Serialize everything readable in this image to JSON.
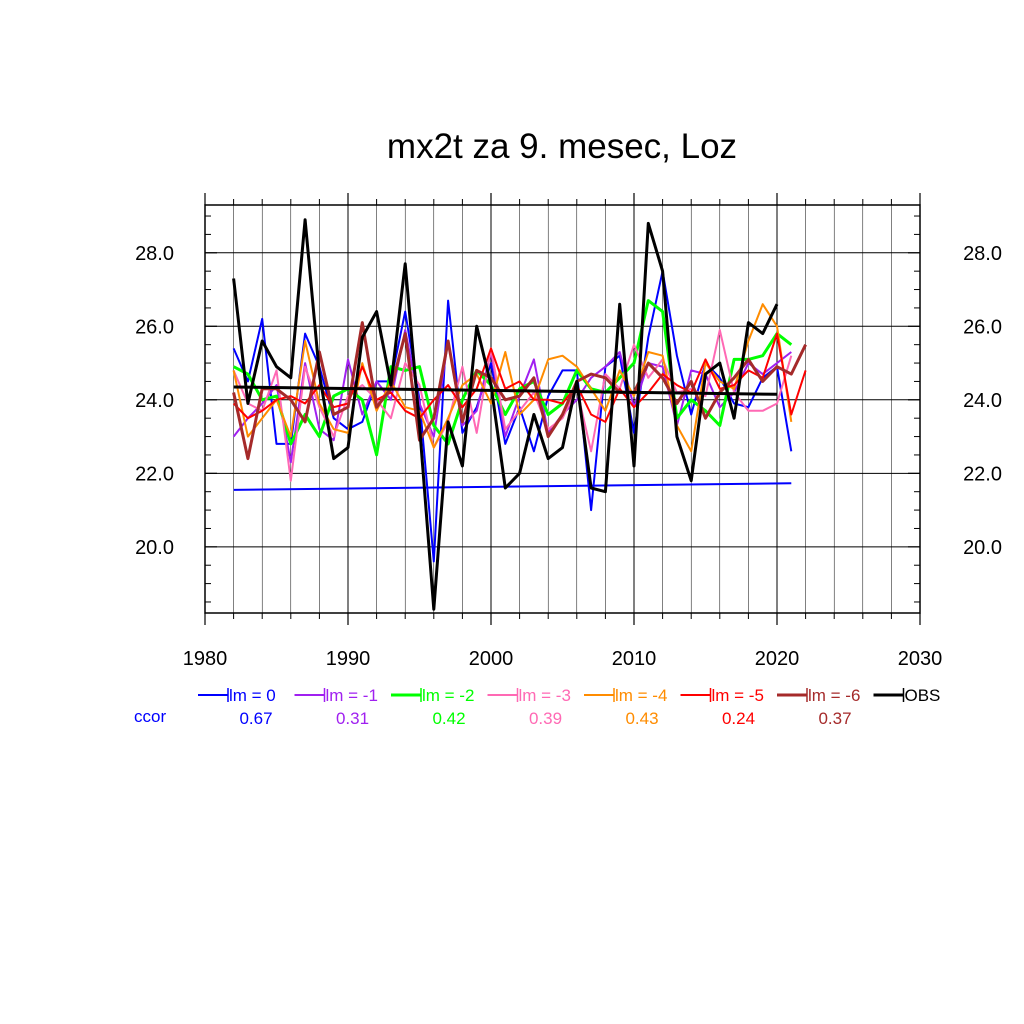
{
  "chart_data": {
    "type": "line",
    "title": "mx2t za 9. mesec, Loz",
    "xlim": [
      1980,
      2030
    ],
    "ylim": [
      18.2,
      29.3
    ],
    "x_ticks": [
      1980,
      1990,
      2000,
      2010,
      2020,
      2030
    ],
    "x_tick_labels": [
      "1980",
      "1990",
      "2000",
      "2010",
      "2020",
      "2030"
    ],
    "y_ticks": [
      20,
      22,
      24,
      26,
      28
    ],
    "y_tick_labels": [
      "20.0",
      "22.0",
      "24.0",
      "26.0",
      "28.0"
    ],
    "grid": true,
    "ccor_label": "ccor",
    "series": [
      {
        "name": "lm = 0",
        "color": "#0000ff",
        "width": 2,
        "ccor": "0.67",
        "start_year": 1982,
        "values": [
          25.4,
          24.5,
          26.2,
          22.8,
          22.8,
          25.8,
          24.9,
          23.5,
          23.2,
          23.4,
          24.5,
          24.5,
          26.4,
          24.0,
          19.6,
          26.7,
          23.1,
          23.8,
          25.0,
          22.8,
          23.8,
          22.6,
          24.1,
          24.8,
          24.8,
          21.0,
          24.9,
          25.2,
          23.1,
          25.7,
          27.5,
          25.2,
          23.6,
          25.0,
          24.6,
          23.9,
          23.8,
          24.6,
          24.9,
          22.6
        ],
        "trend": [
          21.55,
          21.73
        ]
      },
      {
        "name": "lm = -1",
        "color": "#a020f0",
        "width": 2,
        "ccor": "0.31",
        "start_year": 1982,
        "values": [
          23.0,
          23.5,
          23.9,
          24.4,
          22.3,
          25.0,
          23.2,
          22.9,
          25.1,
          23.6,
          24.5,
          24.0,
          25.9,
          23.9,
          23.0,
          25.6,
          23.3,
          23.7,
          25.3,
          23.0,
          24.1,
          25.1,
          23.1,
          23.6,
          24.0,
          24.6,
          24.9,
          25.3,
          23.8,
          25.0,
          24.9,
          23.3,
          24.8,
          24.7,
          23.8,
          24.2,
          25.0,
          24.7,
          25.0,
          25.3
        ]
      },
      {
        "name": "lm = -2",
        "color": "#00ff00",
        "width": 3,
        "ccor": "0.42",
        "start_year": 1982,
        "values": [
          24.9,
          24.7,
          24.0,
          24.1,
          22.8,
          23.6,
          23.0,
          24.1,
          24.3,
          24.0,
          22.5,
          24.9,
          24.8,
          24.9,
          23.3,
          22.8,
          24.0,
          24.8,
          24.4,
          23.6,
          24.3,
          24.5,
          23.6,
          23.9,
          24.8,
          24.3,
          24.2,
          24.6,
          25.0,
          26.7,
          26.4,
          23.5,
          24.0,
          23.7,
          23.3,
          25.1,
          25.1,
          25.2,
          25.8,
          25.5
        ]
      },
      {
        "name": "lm = -3",
        "color": "#ff69b4",
        "width": 2,
        "ccor": "0.39",
        "start_year": 1982,
        "values": [
          24.8,
          23.9,
          23.7,
          24.8,
          21.8,
          24.9,
          23.8,
          23.0,
          24.1,
          24.4,
          24.0,
          23.5,
          25.0,
          24.4,
          22.7,
          23.4,
          24.9,
          23.1,
          25.4,
          23.2,
          23.7,
          24.2,
          23.2,
          23.5,
          24.3,
          22.6,
          24.7,
          24.3,
          25.5,
          24.6,
          25.1,
          24.2,
          24.3,
          24.1,
          25.9,
          24.2,
          23.7,
          23.7,
          23.9,
          25.2
        ]
      },
      {
        "name": "lm = -4",
        "color": "#ff8c00",
        "width": 2,
        "ccor": "0.43",
        "start_year": 1982,
        "values": [
          24.8,
          23.0,
          23.5,
          24.0,
          23.0,
          25.6,
          23.9,
          23.2,
          23.1,
          25.0,
          23.7,
          24.5,
          23.8,
          23.7,
          22.7,
          23.5,
          24.4,
          24.7,
          23.9,
          25.3,
          23.6,
          24.0,
          25.1,
          25.2,
          24.9,
          24.3,
          23.7,
          24.8,
          24.1,
          25.3,
          25.2,
          23.3,
          22.6,
          25.0,
          24.5,
          24.3,
          25.6,
          26.6,
          26.0,
          23.4
        ]
      },
      {
        "name": "lm = -5",
        "color": "#ff0000",
        "width": 2,
        "ccor": "0.24",
        "start_year": 1982,
        "values": [
          23.9,
          23.5,
          23.7,
          24.0,
          24.1,
          23.9,
          24.4,
          23.8,
          23.9,
          24.9,
          24.0,
          24.2,
          23.7,
          23.5,
          24.0,
          24.4,
          23.8,
          24.3,
          25.4,
          24.3,
          24.5,
          24.0,
          24.0,
          23.9,
          24.4,
          23.6,
          23.4,
          24.3,
          23.8,
          24.2,
          24.7,
          24.4,
          24.2,
          25.1,
          24.3,
          24.4,
          24.8,
          24.6,
          25.8,
          23.6,
          24.8
        ]
      },
      {
        "name": "lm = -6",
        "color": "#a52a2a",
        "width": 3,
        "ccor": "0.37",
        "start_year": 1982,
        "values": [
          24.2,
          22.4,
          24.3,
          24.3,
          24.0,
          23.4,
          25.3,
          23.6,
          23.8,
          26.1,
          23.8,
          24.3,
          25.8,
          22.9,
          23.5,
          25.6,
          23.4,
          24.8,
          24.6,
          24.0,
          24.1,
          24.6,
          23.0,
          23.6,
          24.5,
          24.7,
          24.6,
          24.2,
          24.2,
          25.0,
          24.6,
          23.9,
          24.5,
          23.5,
          24.2,
          24.6,
          25.1,
          24.5,
          24.9,
          24.7,
          25.5
        ]
      },
      {
        "name": "OBS",
        "color": "#000000",
        "width": 3,
        "start_year": 1982,
        "values": [
          27.3,
          23.9,
          25.6,
          24.9,
          24.6,
          28.9,
          24.7,
          22.4,
          22.7,
          25.7,
          26.4,
          24.4,
          27.7,
          23.3,
          18.3,
          23.4,
          22.2,
          26.0,
          24.4,
          21.6,
          22.0,
          23.6,
          22.4,
          22.7,
          24.5,
          21.6,
          21.5,
          26.6,
          22.2,
          28.8,
          27.5,
          23.0,
          21.8,
          24.7,
          25.0,
          23.5,
          26.1,
          25.8,
          26.6
        ],
        "trend": [
          24.35,
          24.15
        ]
      }
    ]
  }
}
